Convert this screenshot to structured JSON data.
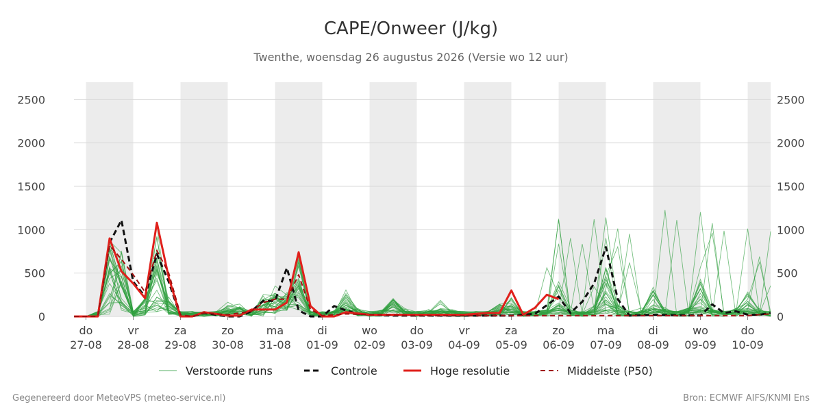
{
  "header": {
    "title": "CAPE/Onweer (J/kg)",
    "subtitle": "Twenthe, woensdag 26 augustus 2026 (Versie wo 12 uur)"
  },
  "footer": {
    "left": "Gegenereerd door MeteoVPS (meteo-service.nl)",
    "right": "Bron: ECMWF AIFS/KNMI Ens"
  },
  "colors": {
    "ensemble": "#2e9e3e",
    "control": "#111111",
    "high_res": "#e0201b",
    "median": "#a01010",
    "night_band": "#ececec",
    "grid": "#d9d9d9"
  },
  "chart_data": {
    "type": "line",
    "title": "CAPE/Onweer (J/kg)",
    "subtitle": "Twenthe, woensdag 26 augustus 2026 (Versie wo 12 uur)",
    "x_unit": "days since 27-08 00:00",
    "xlim": [
      -0.25,
      14.5
    ],
    "ylim": [
      0,
      2700
    ],
    "yticks": [
      0,
      500,
      1000,
      1500,
      2000,
      2500
    ],
    "x_ticks": [
      {
        "day": "do",
        "date": "27-08"
      },
      {
        "day": "vr",
        "date": "28-08"
      },
      {
        "day": "za",
        "date": "29-08"
      },
      {
        "day": "zo",
        "date": "30-08"
      },
      {
        "day": "ma",
        "date": "31-08"
      },
      {
        "day": "di",
        "date": "01-09"
      },
      {
        "day": "wo",
        "date": "02-09"
      },
      {
        "day": "do",
        "date": "03-09"
      },
      {
        "day": "vr",
        "date": "04-09"
      },
      {
        "day": "za",
        "date": "05-09"
      },
      {
        "day": "zo",
        "date": "06-09"
      },
      {
        "day": "ma",
        "date": "07-09"
      },
      {
        "day": "di",
        "date": "08-09"
      },
      {
        "day": "wo",
        "date": "09-09"
      },
      {
        "day": "do",
        "date": "10-09"
      }
    ],
    "weekend_bands": [
      [
        0,
        1
      ],
      [
        2,
        3
      ],
      [
        4,
        5
      ],
      [
        6,
        7
      ],
      [
        8,
        9
      ],
      [
        10,
        11
      ],
      [
        12,
        13
      ],
      [
        14,
        14.5
      ]
    ],
    "grid": true,
    "legend_position": "bottom",
    "legend": [
      "Verstoorde runs",
      "Controle",
      "Hoge resolutie",
      "Middelste (P50)"
    ],
    "series": [
      {
        "name": "Controle",
        "style": "dashed",
        "x": [
          -0.25,
          0,
          0.25,
          0.5,
          0.75,
          1,
          1.25,
          1.5,
          1.75,
          2,
          2.25,
          2.5,
          2.75,
          3,
          3.25,
          3.5,
          3.75,
          4,
          4.25,
          4.5,
          4.75,
          5,
          5.25,
          5.5,
          5.75,
          6,
          6.5,
          7,
          8,
          9,
          9.5,
          10,
          10.25,
          10.5,
          10.75,
          11,
          11.25,
          11.5,
          12,
          13,
          13.25,
          13.5,
          13.75,
          14,
          14.25,
          14.5
        ],
        "y": [
          0,
          0,
          0,
          850,
          1110,
          400,
          230,
          720,
          400,
          0,
          0,
          40,
          20,
          0,
          0,
          60,
          180,
          180,
          560,
          70,
          0,
          0,
          120,
          70,
          30,
          20,
          10,
          10,
          10,
          10,
          30,
          230,
          40,
          170,
          380,
          800,
          200,
          10,
          20,
          10,
          140,
          40,
          60,
          20,
          20,
          40
        ]
      },
      {
        "name": "Hoge resolutie",
        "style": "solid",
        "x": [
          -0.25,
          0,
          0.25,
          0.5,
          0.75,
          1,
          1.25,
          1.5,
          1.75,
          2,
          2.25,
          2.5,
          2.75,
          3,
          3.25,
          3.5,
          3.75,
          4,
          4.25,
          4.5,
          4.75,
          5,
          5.25,
          5.5,
          6,
          7,
          8,
          8.5,
          8.75,
          9,
          9.25,
          9.5,
          9.75,
          10
        ],
        "y": [
          0,
          0,
          0,
          900,
          520,
          380,
          210,
          1080,
          450,
          0,
          0,
          50,
          30,
          10,
          10,
          80,
          80,
          80,
          160,
          740,
          120,
          0,
          0,
          50,
          20,
          20,
          20,
          40,
          40,
          300,
          20,
          100,
          250,
          200
        ]
      },
      {
        "name": "Middelste (P50)",
        "style": "dashed",
        "x": [
          -0.25,
          0,
          0.25,
          0.5,
          0.75,
          1,
          1.25,
          1.5,
          1.75,
          2,
          2.25,
          2.5,
          3,
          3.5,
          3.75,
          4,
          4.25,
          4.5,
          4.75,
          5,
          5.5,
          6,
          7,
          8,
          9,
          10,
          11,
          12,
          13,
          14,
          14.5
        ],
        "y": [
          0,
          0,
          0,
          820,
          660,
          480,
          280,
          760,
          500,
          20,
          0,
          40,
          20,
          60,
          160,
          200,
          200,
          480,
          80,
          10,
          30,
          20,
          10,
          10,
          10,
          10,
          10,
          10,
          10,
          10,
          30
        ]
      }
    ],
    "ensemble_members": 30
  }
}
